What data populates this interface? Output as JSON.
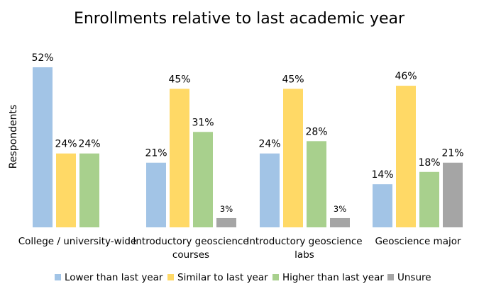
{
  "chart_data": {
    "type": "bar",
    "title": "Enrollments relative to last academic year",
    "xlabel": "",
    "ylabel": "Respondents",
    "categories": [
      [
        "College / university-wide"
      ],
      [
        "Introductory geoscience",
        "courses"
      ],
      [
        "Introductory geoscience",
        "labs"
      ],
      [
        "Geoscience major"
      ]
    ],
    "series": [
      {
        "name": "Lower than last year",
        "color": "#a2c4e6",
        "values": [
          52,
          21,
          24,
          14
        ],
        "labels": [
          "52%",
          "21%",
          "24%",
          "14%"
        ]
      },
      {
        "name": "Similar to last year",
        "color": "#ffd966",
        "values": [
          24,
          45,
          45,
          46
        ],
        "labels": [
          "24%",
          "45%",
          "45%",
          "46%"
        ]
      },
      {
        "name": "Higher than last year",
        "color": "#a8d08d",
        "values": [
          24,
          31,
          28,
          18
        ],
        "labels": [
          "24%",
          "31%",
          "28%",
          "18%"
        ]
      },
      {
        "name": "Unsure",
        "color": "#a5a5a5",
        "values": [
          null,
          3,
          3,
          21
        ],
        "labels": [
          null,
          "3%",
          "3%",
          "21%"
        ]
      }
    ],
    "ylim": [
      0,
      52
    ],
    "grid": false,
    "legend": "bottom"
  }
}
